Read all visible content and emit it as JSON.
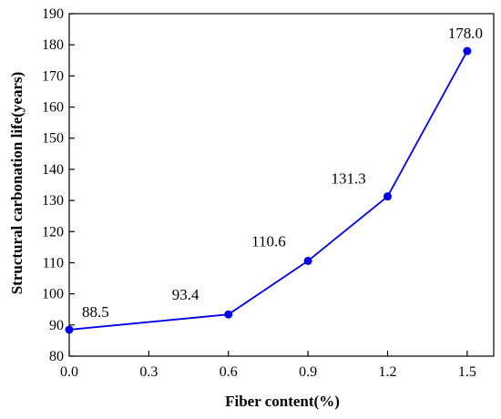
{
  "colors": {
    "series": "#0000ee",
    "axis": "#000000",
    "background": "#ffffff"
  },
  "chart_data": {
    "type": "line",
    "title": "",
    "xlabel": "Fiber content(%)",
    "ylabel": "Structural carbonation life(years)",
    "xlim": [
      0.0,
      1.6
    ],
    "ylim": [
      80,
      190
    ],
    "xticks": [
      0.0,
      0.3,
      0.6,
      0.9,
      1.2,
      1.5
    ],
    "xtick_labels": [
      "0.0",
      "0.3",
      "0.6",
      "0.9",
      "1.2",
      "1.5"
    ],
    "yticks": [
      80,
      90,
      100,
      110,
      120,
      130,
      140,
      150,
      160,
      170,
      180,
      190
    ],
    "ytick_labels": [
      "80",
      "90",
      "100",
      "110",
      "120",
      "130",
      "140",
      "150",
      "160",
      "170",
      "180",
      "190"
    ],
    "grid": false,
    "legend": "none",
    "series": [
      {
        "x": [
          0.0,
          0.6,
          0.9,
          1.2,
          1.5
        ],
        "y": [
          88.5,
          93.4,
          110.6,
          131.3,
          178.0
        ],
        "labels": [
          "88.5",
          "93.4",
          "110.6",
          "131.3",
          "178.0"
        ]
      }
    ]
  }
}
